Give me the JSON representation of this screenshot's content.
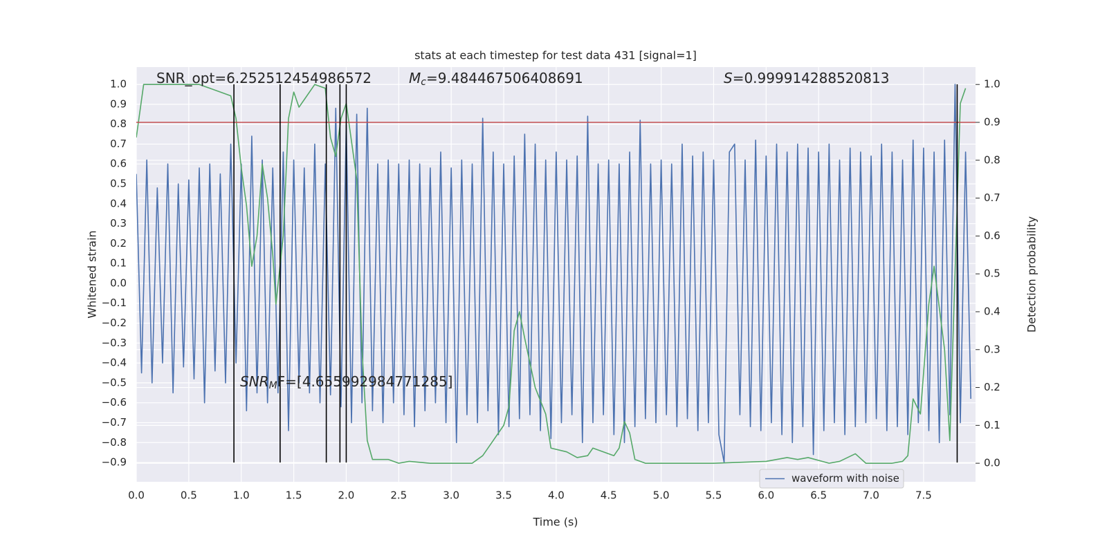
{
  "chart_data": {
    "type": "line",
    "title": "stats at each timestep for test data 431 [signal=1]",
    "xlabel": "Time (s)",
    "ylabel": "Whitened strain",
    "y2label": "Detection probability",
    "xlim": [
      0,
      7.995
    ],
    "ylim": [
      -0.997,
      1.087
    ],
    "y2lim": [
      -0.049,
      1.046
    ],
    "xticks": [
      {
        "value": 0,
        "label": "0.0"
      },
      0.5,
      {
        "value": 1,
        "label": "1.0"
      },
      1.5,
      {
        "value": 2,
        "label": "2.0"
      },
      2.5,
      {
        "value": 3,
        "label": "3.0"
      },
      3.5,
      {
        "value": 4,
        "label": "4.0"
      },
      4.5,
      {
        "value": 5,
        "label": "5.0"
      },
      5.5,
      {
        "value": 6,
        "label": "6.0"
      },
      6.5,
      {
        "value": 7,
        "label": "7.0"
      },
      7.5
    ],
    "yticks": [
      {
        "value": 1,
        "label": "1.0"
      },
      0.9,
      0.8,
      0.7,
      0.6,
      0.5,
      0.4,
      0.3,
      0.2,
      0.1,
      {
        "value": 0,
        "label": "0.0"
      },
      {
        "value": -0.1,
        "label": "−0.1"
      },
      {
        "value": -0.2,
        "label": "−0.2"
      },
      {
        "value": -0.3,
        "label": "−0.3"
      },
      {
        "value": -0.4,
        "label": "−0.4"
      },
      {
        "value": -0.5,
        "label": "−0.5"
      },
      {
        "value": -0.6,
        "label": "−0.6"
      },
      {
        "value": -0.7,
        "label": "−0.7"
      },
      {
        "value": -0.8,
        "label": "−0.8"
      },
      {
        "value": -0.9,
        "label": "−0.9"
      }
    ],
    "y2ticks": [
      {
        "value": 0,
        "label": "0.0"
      },
      0.1,
      0.2,
      0.3,
      0.4,
      0.5,
      0.6,
      0.7,
      0.8,
      0.9,
      {
        "value": 1,
        "label": "1.0"
      }
    ],
    "grid": true,
    "legend": "lower right",
    "series": [
      {
        "name": "waveform with noise",
        "color": "#4c72b0",
        "x": [
          0,
          0.05,
          0.1,
          0.15,
          0.2,
          0.25,
          0.3,
          0.35,
          0.4,
          0.45,
          0.5,
          0.55,
          0.6,
          0.65,
          0.7,
          0.75,
          0.8,
          0.85,
          0.9,
          0.95,
          1,
          1.05,
          1.1,
          1.15,
          1.2,
          1.25,
          1.3,
          1.35,
          1.4,
          1.45,
          1.5,
          1.55,
          1.6,
          1.65,
          1.7,
          1.75,
          1.8,
          1.85,
          1.9,
          1.95,
          2,
          2.05,
          2.1,
          2.15,
          2.2,
          2.25,
          2.3,
          2.35,
          2.4,
          2.45,
          2.5,
          2.55,
          2.6,
          2.65,
          2.7,
          2.75,
          2.8,
          2.85,
          2.9,
          2.95,
          3,
          3.05,
          3.1,
          3.15,
          3.2,
          3.25,
          3.3,
          3.35,
          3.4,
          3.45,
          3.5,
          3.55,
          3.6,
          3.65,
          3.7,
          3.75,
          3.8,
          3.85,
          3.9,
          3.95,
          4,
          4.05,
          4.1,
          4.15,
          4.2,
          4.25,
          4.3,
          4.35,
          4.4,
          4.45,
          4.5,
          4.55,
          4.6,
          4.65,
          4.7,
          4.75,
          4.8,
          4.85,
          4.9,
          4.95,
          5,
          5.05,
          5.1,
          5.15,
          5.2,
          5.25,
          5.3,
          5.35,
          5.4,
          5.45,
          5.5,
          5.55,
          5.6,
          5.65,
          5.7,
          5.75,
          5.8,
          5.85,
          5.9,
          5.95,
          6,
          6.05,
          6.1,
          6.15,
          6.2,
          6.25,
          6.3,
          6.35,
          6.4,
          6.45,
          6.5,
          6.55,
          6.6,
          6.65,
          6.7,
          6.75,
          6.8,
          6.85,
          6.9,
          6.95,
          7,
          7.05,
          7.1,
          7.15,
          7.2,
          7.25,
          7.3,
          7.35,
          7.4,
          7.45,
          7.5,
          7.55,
          7.6,
          7.65,
          7.7,
          7.75,
          7.8,
          7.85,
          7.9,
          7.95
        ],
        "values": [
          0.55,
          -0.45,
          0.62,
          -0.5,
          0.48,
          -0.4,
          0.6,
          -0.55,
          0.5,
          -0.42,
          0.52,
          -0.48,
          0.58,
          -0.6,
          0.6,
          -0.44,
          0.55,
          -0.5,
          0.7,
          -0.4,
          0.6,
          -0.64,
          0.74,
          -0.55,
          0.62,
          -0.6,
          0.58,
          -0.55,
          0.66,
          -0.74,
          0.62,
          -0.5,
          0.58,
          -0.55,
          0.7,
          -0.6,
          0.6,
          -0.56,
          0.88,
          -0.62,
          0.8,
          -0.7,
          0.85,
          -0.6,
          0.88,
          -0.64,
          0.6,
          -0.7,
          0.62,
          -0.6,
          0.6,
          -0.66,
          0.62,
          -0.72,
          0.6,
          -0.64,
          0.58,
          -0.6,
          0.66,
          -0.7,
          0.58,
          -0.8,
          0.62,
          -0.66,
          0.6,
          -0.7,
          0.83,
          -0.64,
          0.66,
          -0.76,
          0.6,
          -0.72,
          0.64,
          -0.68,
          0.75,
          -0.66,
          0.7,
          -0.74,
          0.62,
          -0.78,
          0.66,
          -0.7,
          0.62,
          -0.66,
          0.64,
          -0.8,
          0.84,
          -0.7,
          0.6,
          -0.66,
          0.62,
          -0.76,
          0.6,
          -0.8,
          0.66,
          -0.72,
          0.82,
          -0.68,
          0.6,
          -0.7,
          0.62,
          -0.66,
          0.6,
          -0.72,
          0.7,
          -0.68,
          0.64,
          -0.74,
          0.66,
          -0.7,
          0.62,
          -0.76,
          -0.9,
          0.66,
          0.7,
          -0.66,
          0.62,
          -0.72,
          0.72,
          -0.74,
          0.64,
          -0.7,
          0.7,
          -0.76,
          0.66,
          -0.8,
          0.7,
          -0.72,
          0.68,
          -0.86,
          0.66,
          -0.74,
          0.7,
          -0.7,
          0.62,
          -0.76,
          0.68,
          -0.72,
          0.66,
          -0.7,
          0.64,
          -0.68,
          0.7,
          -0.74,
          0.66,
          -0.72,
          0.62,
          -0.76,
          0.72,
          -0.7,
          0.68,
          -0.74,
          0.66,
          -0.8,
          0.72,
          -0.66,
          1.0,
          -0.7,
          0.66,
          -0.58
        ]
      },
      {
        "color": "#55a868",
        "axis": "y2",
        "x": [
          0,
          0.07,
          0.2,
          0.4,
          0.6,
          0.7,
          0.8,
          0.9,
          0.95,
          1.0,
          1.05,
          1.1,
          1.15,
          1.2,
          1.25,
          1.3,
          1.33,
          1.4,
          1.45,
          1.5,
          1.55,
          1.6,
          1.7,
          1.8,
          1.85,
          1.9,
          1.95,
          2.0,
          2.05,
          2.1,
          2.15,
          2.2,
          2.25,
          2.4,
          2.5,
          2.6,
          2.8,
          3.0,
          3.2,
          3.3,
          3.4,
          3.5,
          3.55,
          3.6,
          3.65,
          3.7,
          3.8,
          3.9,
          3.95,
          4.1,
          4.2,
          4.3,
          4.35,
          4.45,
          4.55,
          4.6,
          4.65,
          4.7,
          4.75,
          4.85,
          5.0,
          5.5,
          6.0,
          6.1,
          6.2,
          6.3,
          6.4,
          6.6,
          6.7,
          6.85,
          6.95,
          7.1,
          7.2,
          7.3,
          7.35,
          7.4,
          7.47,
          7.55,
          7.6,
          7.7,
          7.75,
          7.85,
          7.9
        ],
        "values": [
          0.86,
          1,
          1,
          1,
          1,
          0.99,
          0.98,
          0.97,
          0.91,
          0.78,
          0.68,
          0.52,
          0.6,
          0.79,
          0.7,
          0.55,
          0.42,
          0.6,
          0.91,
          0.98,
          0.94,
          0.96,
          1.0,
          0.99,
          0.86,
          0.81,
          0.91,
          0.95,
          0.85,
          0.75,
          0.3,
          0.06,
          0.01,
          0.01,
          0,
          0.005,
          0,
          0,
          0,
          0.02,
          0.06,
          0.1,
          0.15,
          0.35,
          0.4,
          0.33,
          0.2,
          0.13,
          0.04,
          0.03,
          0.015,
          0.02,
          0.04,
          0.03,
          0.02,
          0.04,
          0.11,
          0.08,
          0.01,
          0,
          0,
          0,
          0.005,
          0.01,
          0.015,
          0.01,
          0.015,
          0,
          0.005,
          0.025,
          0,
          0,
          0,
          0.005,
          0.02,
          0.17,
          0.13,
          0.42,
          0.52,
          0.3,
          0.06,
          0.95,
          0.99
        ]
      }
    ],
    "hlines": [
      {
        "value": 0.9,
        "axis": "y2",
        "color": "#c44e52"
      }
    ],
    "vlines": {
      "x": [
        0.93,
        1.37,
        1.81,
        1.94,
        2.0,
        7.82
      ],
      "ymin": -0.9,
      "ymax": 1.0,
      "color": "#000000"
    },
    "annotations": [
      {
        "parts": [
          {
            "text": "SNR_opt=6.252512454986572"
          }
        ]
      },
      {
        "parts": [
          {
            "text": "M",
            "style": "italic"
          },
          {
            "text": "c",
            "style": "sub"
          },
          {
            "text": "=9.484467506408691"
          }
        ]
      },
      {
        "parts": [
          {
            "text": "S",
            "style": "italic"
          },
          {
            "text": "=0.999914288520813"
          }
        ]
      },
      {
        "parts": [
          {
            "text": "SNR",
            "style": "italic"
          },
          {
            "text": "M",
            "style": "sub"
          },
          {
            "text": "F=[4.655992984771285]"
          }
        ]
      }
    ]
  }
}
